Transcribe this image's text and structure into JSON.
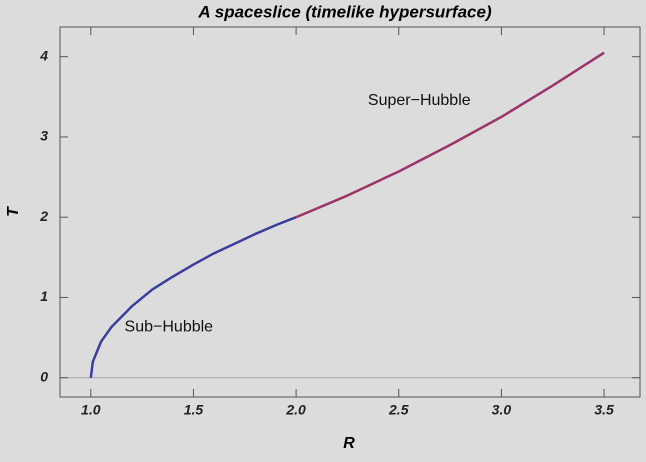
{
  "chart_data": {
    "type": "line",
    "title": "A spaceslice (timelike hypersurface)",
    "x_label": "R",
    "y_label": "T",
    "series": [
      {
        "color": "#3d3d9e",
        "x": [
          1.0,
          1.01,
          1.05,
          1.1,
          1.2,
          1.3,
          1.4,
          1.5,
          1.6,
          1.7,
          1.8,
          1.9,
          2.0
        ],
        "values": [
          0,
          0.2,
          0.45,
          0.63,
          0.89,
          1.1,
          1.26,
          1.41,
          1.55,
          1.67,
          1.79,
          1.9,
          2.0
        ]
      },
      {
        "color": "#9b3468",
        "x": [
          2.0,
          2.25,
          2.5,
          2.75,
          3.0,
          3.25,
          3.5
        ],
        "values": [
          2.0,
          2.27,
          2.57,
          2.9,
          3.25,
          3.64,
          4.05
        ]
      }
    ],
    "annotations": [
      {
        "text": "Super−Hubble",
        "x": 2.6,
        "y": 3.45
      },
      {
        "text": "Sub−Hubble",
        "x": 1.38,
        "y": 0.63
      }
    ],
    "xlim": [
      0.85,
      3.675
    ],
    "ylim": [
      -0.24,
      4.37
    ],
    "xticks": [
      {
        "value": 1,
        "label": "1.0"
      },
      1.5,
      {
        "value": 2,
        "label": "2.0"
      },
      2.5,
      {
        "value": 3,
        "label": "3.0"
      },
      3.5
    ],
    "yticks": [
      0,
      1,
      2,
      3,
      4
    ]
  }
}
